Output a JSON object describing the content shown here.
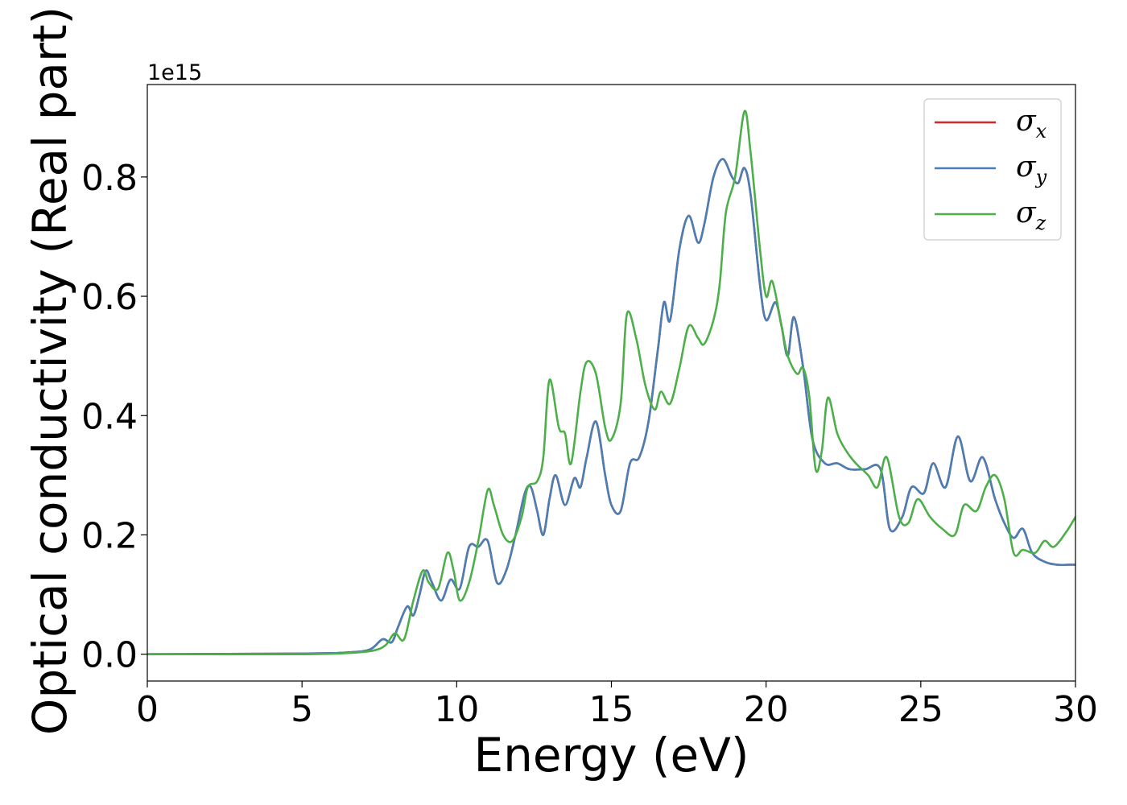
{
  "chart_data": {
    "type": "line",
    "xlabel": "Energy (eV)",
    "ylabel": "Optical conductivity (Real part)",
    "y_offset_label": "1e15",
    "xlim": [
      0,
      30
    ],
    "ylim": [
      -0.045,
      0.955
    ],
    "x_ticks": [
      0,
      5,
      10,
      15,
      20,
      25,
      30
    ],
    "y_ticks": [
      0.0,
      0.2,
      0.4,
      0.6,
      0.8
    ],
    "x_tick_labels": [
      "0",
      "5",
      "10",
      "15",
      "20",
      "25",
      "30"
    ],
    "y_tick_labels": [
      "0.0",
      "0.2",
      "0.4",
      "0.6",
      "0.8"
    ],
    "grid": false,
    "legend_position": "top-right",
    "series": [
      {
        "name": "σ_x",
        "legend_symbol": "σ",
        "legend_subscript": "x",
        "color": "#d62728",
        "x": [
          0,
          5,
          6.5,
          7.2,
          7.6,
          7.9,
          8.1,
          8.4,
          8.6,
          8.8,
          9.0,
          9.2,
          9.5,
          9.8,
          10.1,
          10.4,
          10.7,
          11.0,
          11.3,
          11.6,
          11.9,
          12.2,
          12.4,
          12.6,
          12.8,
          13.0,
          13.2,
          13.5,
          13.8,
          14.0,
          14.2,
          14.5,
          14.8,
          15.0,
          15.3,
          15.6,
          15.9,
          16.2,
          16.5,
          16.7,
          16.9,
          17.2,
          17.5,
          17.8,
          18.0,
          18.3,
          18.6,
          18.9,
          19.1,
          19.3,
          19.5,
          19.8,
          20.0,
          20.3,
          20.5,
          20.7,
          20.9,
          21.2,
          21.5,
          21.9,
          22.3,
          22.7,
          23.2,
          23.7,
          24.0,
          24.4,
          24.7,
          25.1,
          25.4,
          25.8,
          26.2,
          26.6,
          27.0,
          27.4,
          27.7,
          28.0,
          28.3,
          28.6,
          29.0,
          29.4,
          29.8,
          30.0
        ],
        "y": [
          0.0,
          0.001,
          0.003,
          0.008,
          0.025,
          0.02,
          0.045,
          0.08,
          0.065,
          0.1,
          0.14,
          0.12,
          0.09,
          0.125,
          0.11,
          0.18,
          0.18,
          0.19,
          0.12,
          0.14,
          0.2,
          0.27,
          0.28,
          0.24,
          0.2,
          0.26,
          0.3,
          0.25,
          0.295,
          0.28,
          0.33,
          0.39,
          0.3,
          0.25,
          0.24,
          0.32,
          0.33,
          0.39,
          0.51,
          0.59,
          0.56,
          0.68,
          0.735,
          0.69,
          0.72,
          0.8,
          0.83,
          0.8,
          0.79,
          0.815,
          0.77,
          0.62,
          0.56,
          0.59,
          0.55,
          0.5,
          0.565,
          0.48,
          0.36,
          0.32,
          0.32,
          0.31,
          0.31,
          0.31,
          0.21,
          0.23,
          0.28,
          0.27,
          0.32,
          0.28,
          0.365,
          0.29,
          0.33,
          0.26,
          0.22,
          0.195,
          0.21,
          0.17,
          0.155,
          0.15,
          0.15,
          0.15
        ]
      },
      {
        "name": "σ_y",
        "legend_symbol": "σ",
        "legend_subscript": "y",
        "color": "#4a7fb5",
        "x": [
          0,
          5,
          6.5,
          7.2,
          7.6,
          7.9,
          8.1,
          8.4,
          8.6,
          8.8,
          9.0,
          9.2,
          9.5,
          9.8,
          10.1,
          10.4,
          10.7,
          11.0,
          11.3,
          11.6,
          11.9,
          12.2,
          12.4,
          12.6,
          12.8,
          13.0,
          13.2,
          13.5,
          13.8,
          14.0,
          14.2,
          14.5,
          14.8,
          15.0,
          15.3,
          15.6,
          15.9,
          16.2,
          16.5,
          16.7,
          16.9,
          17.2,
          17.5,
          17.8,
          18.0,
          18.3,
          18.6,
          18.9,
          19.1,
          19.3,
          19.5,
          19.8,
          20.0,
          20.3,
          20.5,
          20.7,
          20.9,
          21.2,
          21.5,
          21.9,
          22.3,
          22.7,
          23.2,
          23.7,
          24.0,
          24.4,
          24.7,
          25.1,
          25.4,
          25.8,
          26.2,
          26.6,
          27.0,
          27.4,
          27.7,
          28.0,
          28.3,
          28.6,
          29.0,
          29.4,
          29.8,
          30.0
        ],
        "y": [
          0.0,
          0.001,
          0.003,
          0.008,
          0.025,
          0.02,
          0.045,
          0.08,
          0.065,
          0.1,
          0.14,
          0.12,
          0.09,
          0.125,
          0.11,
          0.18,
          0.18,
          0.19,
          0.12,
          0.14,
          0.2,
          0.27,
          0.28,
          0.24,
          0.2,
          0.26,
          0.3,
          0.25,
          0.295,
          0.28,
          0.33,
          0.39,
          0.3,
          0.25,
          0.24,
          0.32,
          0.33,
          0.39,
          0.51,
          0.59,
          0.56,
          0.68,
          0.735,
          0.69,
          0.72,
          0.8,
          0.83,
          0.8,
          0.79,
          0.815,
          0.77,
          0.62,
          0.56,
          0.59,
          0.55,
          0.5,
          0.565,
          0.48,
          0.36,
          0.32,
          0.32,
          0.31,
          0.31,
          0.31,
          0.21,
          0.23,
          0.28,
          0.27,
          0.32,
          0.28,
          0.365,
          0.29,
          0.33,
          0.26,
          0.22,
          0.195,
          0.21,
          0.17,
          0.155,
          0.15,
          0.15,
          0.15
        ]
      },
      {
        "name": "σ_z",
        "legend_symbol": "σ",
        "legend_subscript": "z",
        "color": "#4daf4a",
        "x": [
          0,
          5,
          6.5,
          7.3,
          7.7,
          8.0,
          8.3,
          8.6,
          8.9,
          9.1,
          9.4,
          9.7,
          9.9,
          10.1,
          10.4,
          10.7,
          11.0,
          11.2,
          11.5,
          11.8,
          12.1,
          12.3,
          12.6,
          12.8,
          13.0,
          13.3,
          13.5,
          13.7,
          14.0,
          14.2,
          14.5,
          14.8,
          15.0,
          15.3,
          15.5,
          15.8,
          16.1,
          16.4,
          16.6,
          16.9,
          17.2,
          17.5,
          17.8,
          18.0,
          18.3,
          18.5,
          18.7,
          19.0,
          19.3,
          19.5,
          19.8,
          20.0,
          20.2,
          20.5,
          20.7,
          21.0,
          21.2,
          21.4,
          21.6,
          21.8,
          22.0,
          22.3,
          22.6,
          22.9,
          23.3,
          23.6,
          23.9,
          24.3,
          24.6,
          24.9,
          25.3,
          25.7,
          26.1,
          26.4,
          26.8,
          27.1,
          27.4,
          27.7,
          28.0,
          28.3,
          28.7,
          29.0,
          29.3,
          29.7,
          30.0
        ],
        "y": [
          0.0,
          0.0,
          0.002,
          0.006,
          0.015,
          0.035,
          0.025,
          0.09,
          0.14,
          0.12,
          0.11,
          0.17,
          0.14,
          0.09,
          0.12,
          0.19,
          0.275,
          0.25,
          0.2,
          0.19,
          0.23,
          0.28,
          0.29,
          0.33,
          0.46,
          0.38,
          0.37,
          0.32,
          0.44,
          0.49,
          0.47,
          0.38,
          0.36,
          0.42,
          0.57,
          0.53,
          0.45,
          0.41,
          0.44,
          0.42,
          0.48,
          0.55,
          0.53,
          0.52,
          0.56,
          0.62,
          0.74,
          0.8,
          0.91,
          0.84,
          0.68,
          0.6,
          0.625,
          0.55,
          0.5,
          0.47,
          0.48,
          0.43,
          0.31,
          0.34,
          0.43,
          0.37,
          0.34,
          0.32,
          0.3,
          0.28,
          0.33,
          0.23,
          0.22,
          0.26,
          0.23,
          0.21,
          0.2,
          0.25,
          0.24,
          0.28,
          0.3,
          0.26,
          0.17,
          0.175,
          0.17,
          0.19,
          0.18,
          0.205,
          0.23
        ]
      }
    ]
  }
}
